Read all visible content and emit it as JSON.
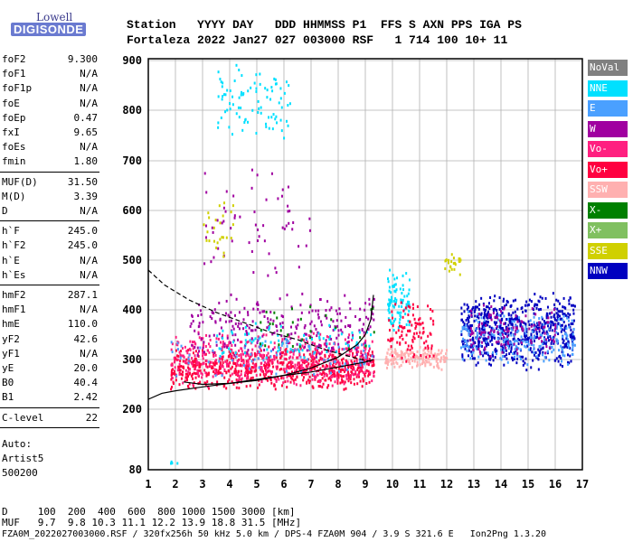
{
  "logo": {
    "line1": "Lowell",
    "line2": "DIGISONDE"
  },
  "header": {
    "line1": "Station   YYYY DAY   DDD HHMMSS P1  FFS S AXN PPS IGA PS",
    "line2": "Fortaleza 2022 Jan27 027 003000 RSF   1 714 100 10+ 11"
  },
  "params": [
    {
      "group": 1,
      "items": [
        {
          "k": "foF2",
          "v": "9.300"
        },
        {
          "k": "foF1",
          "v": "N/A"
        },
        {
          "k": "foF1p",
          "v": "N/A"
        },
        {
          "k": "foE",
          "v": "N/A"
        },
        {
          "k": "foEp",
          "v": "0.47"
        },
        {
          "k": "fxI",
          "v": "9.65"
        },
        {
          "k": "foEs",
          "v": "N/A"
        },
        {
          "k": "fmin",
          "v": "1.80"
        }
      ]
    },
    {
      "group": 2,
      "items": [
        {
          "k": "MUF(D)",
          "v": "31.50"
        },
        {
          "k": "M(D)",
          "v": "3.39"
        },
        {
          "k": "D",
          "v": "N/A"
        }
      ]
    },
    {
      "group": 3,
      "items": [
        {
          "k": "h`F",
          "v": "245.0"
        },
        {
          "k": "h`F2",
          "v": "245.0"
        },
        {
          "k": "h`E",
          "v": "N/A"
        },
        {
          "k": "h`Es",
          "v": "N/A"
        }
      ]
    },
    {
      "group": 4,
      "items": [
        {
          "k": "hmF2",
          "v": "287.1"
        },
        {
          "k": "hmF1",
          "v": "N/A"
        },
        {
          "k": "hmE",
          "v": "110.0"
        },
        {
          "k": "yF2",
          "v": "42.6"
        },
        {
          "k": "yF1",
          "v": "N/A"
        },
        {
          "k": "yE",
          "v": "20.0"
        },
        {
          "k": "B0",
          "v": "40.4"
        },
        {
          "k": "B1",
          "v": "2.42"
        }
      ]
    },
    {
      "group": 5,
      "items": [
        {
          "k": "C-level",
          "v": "22"
        }
      ]
    }
  ],
  "auto": {
    "l1": "Auto:",
    "l2": "Artist5",
    "l3": "500200"
  },
  "legend": [
    {
      "label": "NoVal",
      "color": "#808080"
    },
    {
      "label": "NNE",
      "color": "#00e0ff"
    },
    {
      "label": "E",
      "color": "#4aa0ff"
    },
    {
      "label": "W",
      "color": "#a000a0"
    },
    {
      "label": "Vo-",
      "color": "#ff2080"
    },
    {
      "label": "Vo+",
      "color": "#ff0040"
    },
    {
      "label": "SSW",
      "color": "#ffb0b0"
    },
    {
      "label": "X-",
      "color": "#008000"
    },
    {
      "label": "X+",
      "color": "#80c060"
    },
    {
      "label": "SSE",
      "color": "#d0d000"
    },
    {
      "label": "NNW",
      "color": "#0000c0"
    }
  ],
  "footer": {
    "line1": "D     100  200  400  600  800 1000 1500 3000 [km]",
    "line2": "MUF   9.7  9.8 10.3 11.1 12.2 13.9 18.8 31.5 [MHz]",
    "line3": "FZA0M_2022027003000.RSF / 320fx256h 50 kHz 5.0 km / DPS-4 FZA0M 904 / 3.9 S 321.6 E   Ion2Png 1.3.20"
  },
  "chart_data": {
    "type": "scatter",
    "xlim": [
      1,
      17
    ],
    "ylim": [
      80,
      900
    ],
    "x_ticks": [
      1,
      2,
      3,
      4,
      5,
      6,
      7,
      8,
      9,
      10,
      11,
      12,
      13,
      14,
      15,
      16,
      17
    ],
    "y_ticks": [
      80,
      200,
      300,
      400,
      500,
      600,
      700,
      800,
      900
    ],
    "grid": true,
    "legend_position": "right",
    "clusters": [
      {
        "series": "Vo+",
        "x": [
          1.8,
          9.3
        ],
        "y": [
          240,
          330
        ],
        "n": 700
      },
      {
        "series": "Vo-",
        "x": [
          1.8,
          9.3
        ],
        "y": [
          245,
          360
        ],
        "n": 450
      },
      {
        "series": "W",
        "x": [
          2.5,
          9.3
        ],
        "y": [
          300,
          440
        ],
        "n": 260
      },
      {
        "series": "NNE",
        "x": [
          3.5,
          9.3
        ],
        "y": [
          300,
          380
        ],
        "n": 80
      },
      {
        "series": "E",
        "x": [
          1.8,
          9.3
        ],
        "y": [
          260,
          360
        ],
        "n": 80
      },
      {
        "series": "X-",
        "x": [
          5.0,
          9.3
        ],
        "y": [
          300,
          420
        ],
        "n": 30
      },
      {
        "series": "SSW",
        "x": [
          9.7,
          12.0
        ],
        "y": [
          280,
          330
        ],
        "n": 160
      },
      {
        "series": "NNE",
        "x": [
          9.8,
          10.6
        ],
        "y": [
          350,
          490
        ],
        "n": 90
      },
      {
        "series": "Vo+",
        "x": [
          9.8,
          11.5
        ],
        "y": [
          290,
          420
        ],
        "n": 100
      },
      {
        "series": "NNW",
        "x": [
          12.5,
          16.7
        ],
        "y": [
          280,
          440
        ],
        "n": 650
      },
      {
        "series": "E",
        "x": [
          12.5,
          16.7
        ],
        "y": [
          290,
          400
        ],
        "n": 220
      },
      {
        "series": "W",
        "x": [
          12.8,
          16.0
        ],
        "y": [
          300,
          420
        ],
        "n": 120
      },
      {
        "series": "NNE",
        "x": [
          3.5,
          6.2
        ],
        "y": [
          730,
          900
        ],
        "n": 90
      },
      {
        "series": "W",
        "x": [
          3.0,
          7.0
        ],
        "y": [
          460,
          700
        ],
        "n": 60
      },
      {
        "series": "SSE",
        "x": [
          3.0,
          4.2
        ],
        "y": [
          480,
          640
        ],
        "n": 25
      },
      {
        "series": "SSE",
        "x": [
          11.9,
          12.5
        ],
        "y": [
          470,
          520
        ],
        "n": 25
      },
      {
        "series": "NNE",
        "x": [
          1.8,
          2.1
        ],
        "y": [
          90,
          110
        ],
        "n": 4
      }
    ],
    "curves": [
      {
        "name": "virtual",
        "style": "solid",
        "points": [
          [
            2.3,
            255
          ],
          [
            3,
            250
          ],
          [
            4,
            252
          ],
          [
            5,
            258
          ],
          [
            6,
            268
          ],
          [
            7,
            283
          ],
          [
            8,
            305
          ],
          [
            8.7,
            330
          ],
          [
            9.0,
            350
          ],
          [
            9.2,
            380
          ],
          [
            9.3,
            430
          ]
        ]
      },
      {
        "name": "profile",
        "style": "solid",
        "points": [
          [
            1,
            220
          ],
          [
            1.5,
            232
          ],
          [
            2,
            237
          ],
          [
            3,
            245
          ],
          [
            4,
            252
          ],
          [
            5,
            260
          ],
          [
            6,
            268
          ],
          [
            7,
            275
          ],
          [
            8,
            285
          ],
          [
            9,
            295
          ],
          [
            9.3,
            300
          ]
        ]
      },
      {
        "name": "muf",
        "style": "dashed",
        "points": [
          [
            1,
            480
          ],
          [
            1.6,
            450
          ],
          [
            2.5,
            420
          ],
          [
            3.5,
            395
          ],
          [
            4.5,
            375
          ],
          [
            5.5,
            355
          ],
          [
            6.5,
            340
          ],
          [
            7.5,
            320
          ],
          [
            8.5,
            305
          ],
          [
            9.3,
            295
          ]
        ]
      }
    ]
  }
}
